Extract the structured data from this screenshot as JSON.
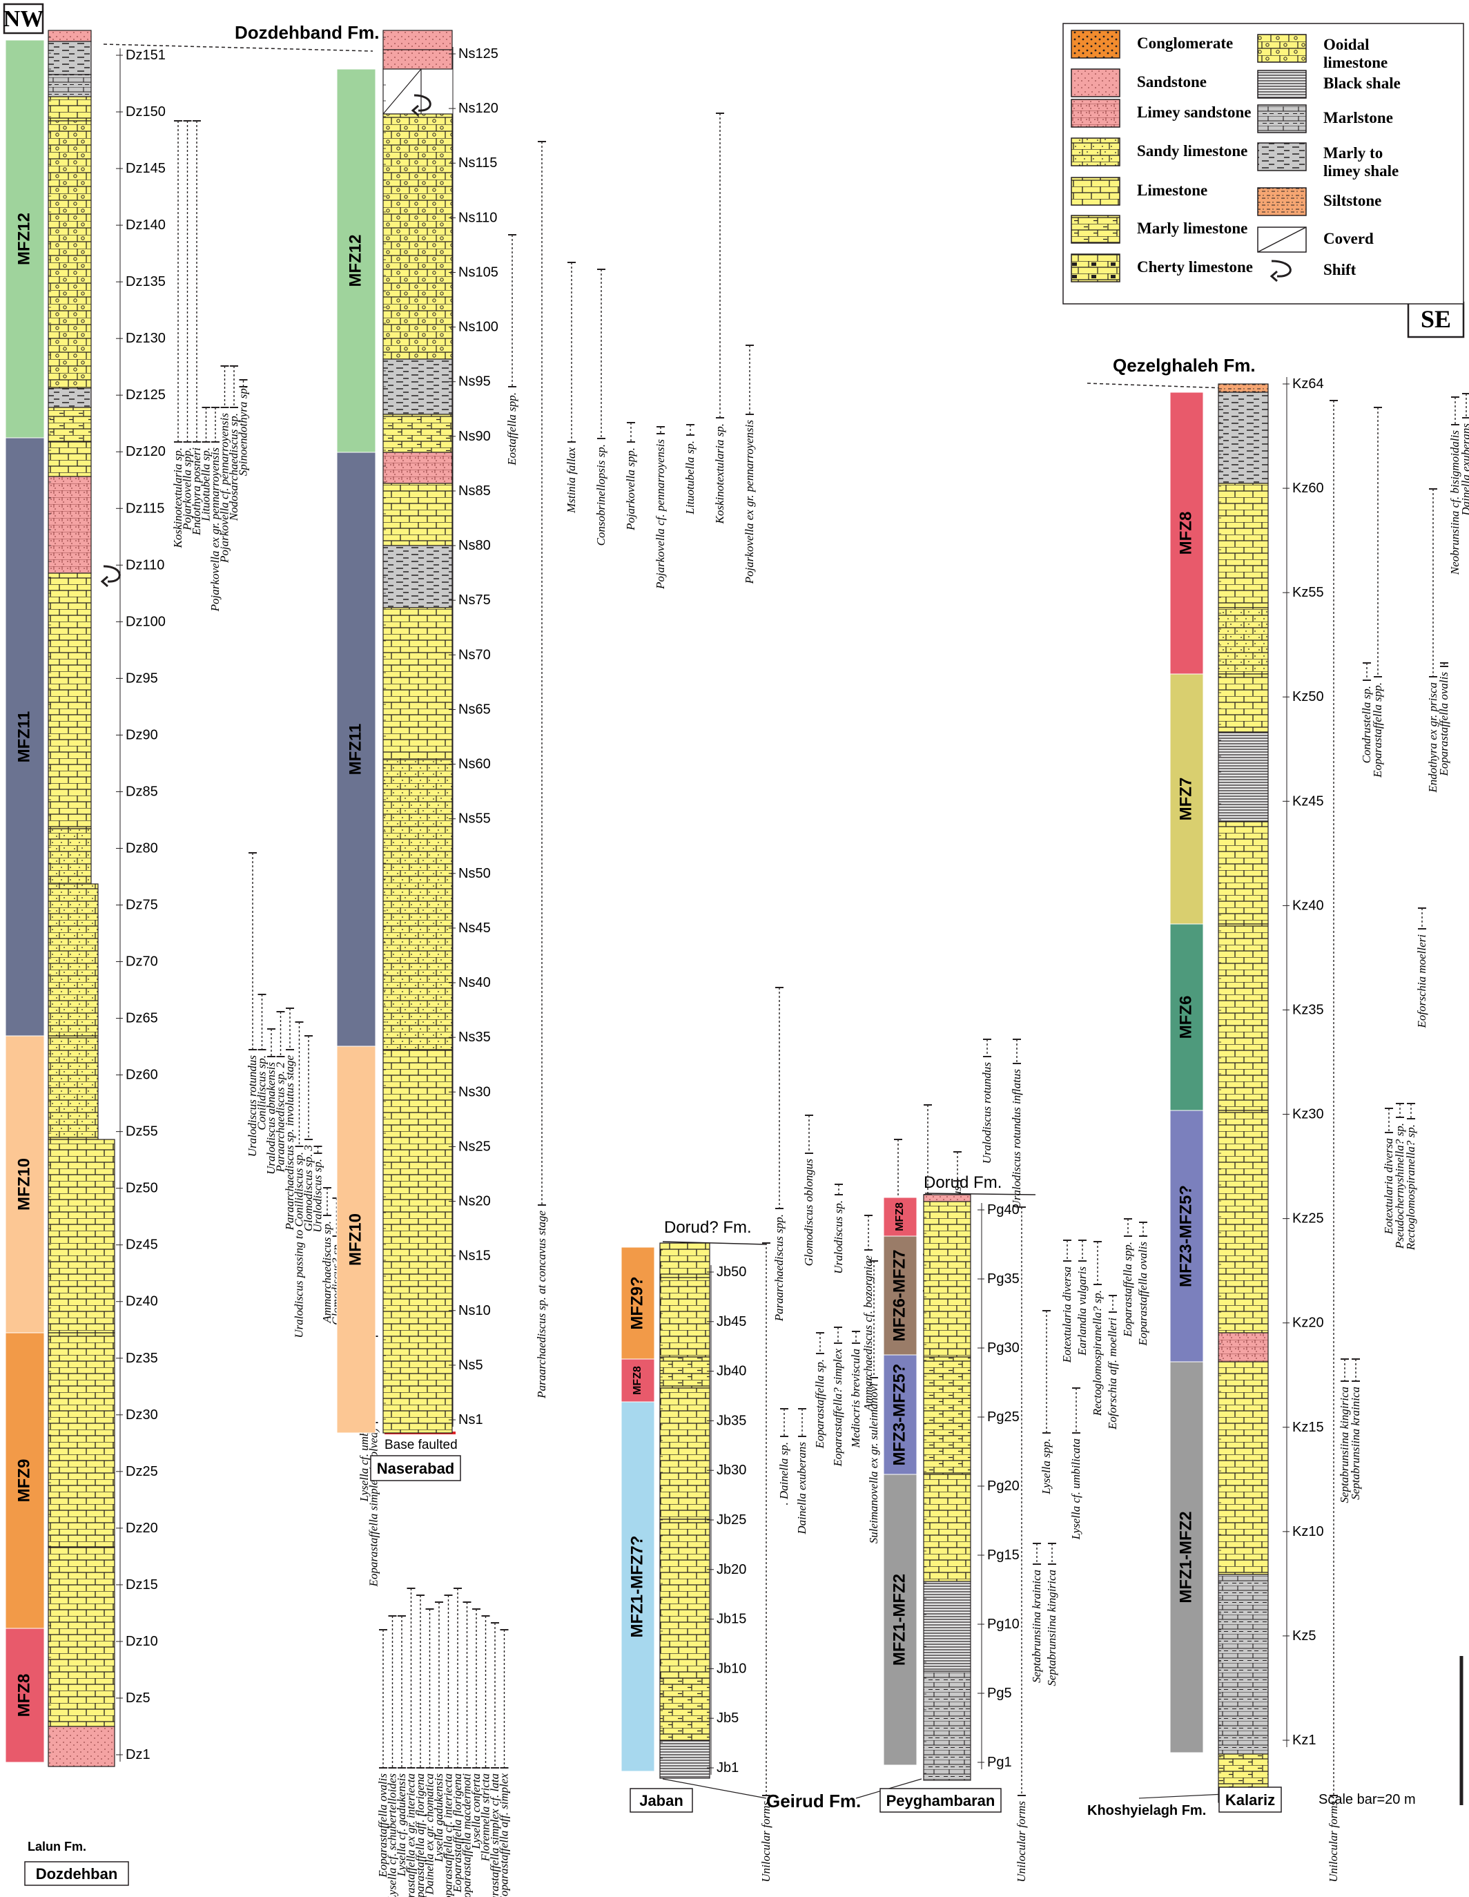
{
  "corner_labels": {
    "nw": "NW",
    "se": "SE"
  },
  "formations": {
    "dozdehband": "Dozdehband Fm.",
    "qezelghaleh": "Qezelghaleh Fm.",
    "dorud_jaban": "Dorud? Fm.",
    "dorud_peygh": "Dorud Fm.",
    "geirud": "Geirud Fm.",
    "lalun": "Lalun Fm.",
    "khoshyielagh": "Khoshyielagh Fm.",
    "base_faulted": "Base faulted"
  },
  "legend": {
    "items": [
      {
        "label": "Conglomerate",
        "pattern": "conglomerate"
      },
      {
        "label": "Sandstone",
        "pattern": "sandstone"
      },
      {
        "label": "Limey sandstone",
        "pattern": "limey-sandstone"
      },
      {
        "label": "Sandy limestone",
        "pattern": "sandy-limestone"
      },
      {
        "label": "Limestone",
        "pattern": "limestone"
      },
      {
        "label": "Marly limestone",
        "pattern": "marly-limestone"
      },
      {
        "label": "Cherty limestone",
        "pattern": "cherty-limestone"
      },
      {
        "label": "Ooidal limestone",
        "pattern": "ooidal-limestone"
      },
      {
        "label": "Black shale",
        "pattern": "black-shale"
      },
      {
        "label": "Marlstone",
        "pattern": "marlstone"
      },
      {
        "label": "Marly to limey shale",
        "pattern": "marly-shale"
      },
      {
        "label": "Siltstone",
        "pattern": "siltstone"
      },
      {
        "label": "Coverd",
        "pattern": "covered"
      },
      {
        "label": "Shift",
        "pattern": "shift"
      }
    ]
  },
  "colors": {
    "limestone": "#fdf57f",
    "outline": "#231f20",
    "sand": "#f4a3a3",
    "conglomerate": "#f28c2e",
    "mfz8": "#e85a6b",
    "mfz9": "#f29a48",
    "mfz10": "#fcc794",
    "mfz11": "#6b7391",
    "mfz12": "#9fd39c",
    "mfz7": "#d9cf6f",
    "mfz6": "#4e9a7c",
    "mfz3_5": "#7b80bd",
    "mfz1_2": "#9c9c9c",
    "mfz1_7": "#a7d8ee",
    "mfz6_7": "#9a7c68"
  },
  "scale_bar": "Scale bar=20 m",
  "sections": [
    {
      "name": "Dozdehban",
      "zones": [
        {
          "label": "MFZ12",
          "color": "#9fd39c"
        },
        {
          "label": "MFZ11",
          "color": "#6b7391"
        },
        {
          "label": "MFZ10",
          "color": "#fcc794"
        },
        {
          "label": "MFZ9",
          "color": "#f29a48"
        },
        {
          "label": "MFZ8",
          "color": "#e85a6b"
        }
      ],
      "samples": [
        "Dz151",
        "Dz150",
        "Dz145",
        "Dz140",
        "Dz135",
        "Dz130",
        "Dz125",
        "Dz120",
        "Dz115",
        "Dz110",
        "Dz100",
        "Dz95",
        "Dz90",
        "Dz85",
        "Dz80",
        "Dz75",
        "Dz70",
        "Dz65",
        "Dz60",
        "Dz55",
        "Dz50",
        "Dz45",
        "Dz40",
        "Dz35",
        "Dz30",
        "Dz25",
        "Dz20",
        "Dz15",
        "Dz10",
        "Dz5",
        "Dz1"
      ],
      "taxa": [
        "Koskinotextularia sp.",
        "Pojarkovella spp.",
        "Endothyra posneri",
        "Lituotubella sp.",
        "Pojarkovella ex gr. pennarroyensis",
        "Pojarkovella cf. pennarroyensis",
        "Nodosarchaediscus sp.",
        "Spinoendothyra sp.",
        "Uralodiscus rotundus",
        "Conilidiscus sp.",
        "Uralodiscus abnakensis",
        "Paraarchaediscus sp. 2",
        "Paraarchaediscus sp. involutus stage",
        "Uralodiscus passing to Conilidiscus sp.",
        "Glomodiscus sp. 3",
        "Uralodiscus sp.",
        "Ammarchaediscus sp.",
        "Glomodiscus? sp.",
        "Ammarchaediscus cf. bozorgniae",
        "Ammarchaediscus sp. 3",
        "Lysella cf. umbilicata",
        "Eoparastaffella simplex (evolved)",
        "Eoparastaffella ovalis",
        "Lysella cf. schubertelloides",
        "Lysella cf. gadukensis",
        "Eoparastaffella ex gr. interiecta",
        "Eoparastaffella aff. florigena",
        "Dainella ex gr. chomatica",
        "Lysella gadukensis",
        "Eoparastaffella cf. interiecta",
        "Eoparastaffella florigena",
        "Eoparastaffella macdermoti",
        "Lysella conferta",
        "Florennella stricta",
        "Eoparastaffella simplex cf. lata",
        "Eoparastaffella aff. simplex"
      ]
    },
    {
      "name": "Naserabad",
      "zones": [
        {
          "label": "MFZ12",
          "color": "#9fd39c"
        },
        {
          "label": "MFZ11",
          "color": "#6b7391"
        },
        {
          "label": "MFZ10",
          "color": "#fcc794"
        }
      ],
      "samples": [
        "Ns125",
        "Ns120",
        "Ns115",
        "Ns110",
        "Ns105",
        "Ns100",
        "Ns95",
        "Ns90",
        "Ns85",
        "Ns80",
        "Ns75",
        "Ns70",
        "Ns65",
        "Ns60",
        "Ns55",
        "Ns50",
        "Ns45",
        "Ns40",
        "Ns35",
        "Ns30",
        "Ns25",
        "Ns20",
        "Ns15",
        "Ns10",
        "Ns5",
        "Ns1"
      ],
      "taxa": [
        "Eostaffella spp.",
        "Paraarchaediscus sp. at concavus stage",
        "Mstinia fallax",
        "Consobrinellopsis sp.",
        "Pojarkovella spp.",
        "Pojarkovella cf. pennarroyensis",
        "Lituotubella sp.",
        "Koskinotextularia sp.",
        "Pojarkovella ex gr. pennarroyensis",
        "Paraarchaediscus spp.",
        "Glomodiscus oblongus",
        "Uralodiscus sp.",
        "Ammarchaediscus cf. bozorgniae",
        "Ammarchaediscus passing to Viseidiscus sp.",
        "Viseidiscus cf. primaevus",
        "Uralodiscus elongatus",
        "Uralodiscus rotundus",
        "Uralodiscus rotundus inflatus",
        "Lysella spp.",
        "Lysella cf. umbilicata"
      ]
    },
    {
      "name": "Jaban",
      "zones": [
        {
          "label": "MFZ9?",
          "color": "#f29a48"
        },
        {
          "label": "MFZ8",
          "color": "#e85a6b"
        },
        {
          "label": "MFZ1-MFZ7?",
          "color": "#a7d8ee"
        }
      ],
      "samples": [
        "Jb50",
        "Jb45",
        "Jb40",
        "Jb35",
        "Jb30",
        "Jb25",
        "Jb20",
        "Jb15",
        "Jb10",
        "Jb5",
        "Jb1"
      ],
      "taxa": [
        "Unilocular forms",
        ". Dainella sp.",
        "Dainella exuberans",
        "Eoparastaffella sp.",
        "Eoparastaffella? simplex",
        "Mediocris breviscula",
        "Suleimanovella ex gr. suleimanovi",
        "Calcisphaera sp."
      ]
    },
    {
      "name": "Peyghambaran",
      "zones": [
        {
          "label": "MFZ8",
          "color": "#e85a6b"
        },
        {
          "label": "MFZ6-MFZ7",
          "color": "#9a7c68"
        },
        {
          "label": "MFZ3-MFZ5?",
          "color": "#7b80bd"
        },
        {
          "label": "MFZ1-MFZ2",
          "color": "#9c9c9c"
        }
      ],
      "samples": [
        "Pg40",
        "Pg35",
        "Pg30",
        "Pg25",
        "Pg20",
        "Pg15",
        "Pg10",
        "Pg5",
        "Pg1"
      ],
      "taxa": [
        "Unilocular forms",
        "Septabrunsiina krainica",
        "Septabrunsiina kingirica",
        "Eotextularia diversa",
        "Earlandia vulgaris",
        "Rectoglomospiranella? sp.",
        "Eoforschia aff. moelleri",
        "Eoparastaffella spp.",
        "Eoparastaffella ovalis"
      ]
    },
    {
      "name": "Kalariz",
      "zones": [
        {
          "label": "MFZ8",
          "color": "#e85a6b"
        },
        {
          "label": "MFZ7",
          "color": "#d9cf6f"
        },
        {
          "label": "MFZ6",
          "color": "#4e9a7c"
        },
        {
          "label": "MFZ3-MFZ5?",
          "color": "#7b80bd"
        },
        {
          "label": "MFZ1-MFZ2",
          "color": "#9c9c9c"
        }
      ],
      "samples": [
        "Kz64",
        "Kz60",
        "Kz55",
        "Kz50",
        "Kz45",
        "Kz40",
        "Kz35",
        "Kz30",
        "Kz25",
        "Kz20",
        "Kz15",
        "Kz10",
        "Kz5",
        "Kz1"
      ],
      "taxa": [
        "Unilocular forms",
        "Septabrunsiina kingirica",
        "Septabrunsiina krainica",
        "Condrustella sp.",
        "Eoparastaffella spp.",
        "Eotextularia diversa",
        "Pseudochernyshinella? sp.",
        "Rectoglomospiranella? sp.",
        "Eoforschia moelleri",
        "Endothyra ex gr. prisca",
        "Eoparastaffella ovalis",
        "Neobrunsiina cf. bisigmoidalis",
        "Dainella exuberans"
      ]
    }
  ]
}
